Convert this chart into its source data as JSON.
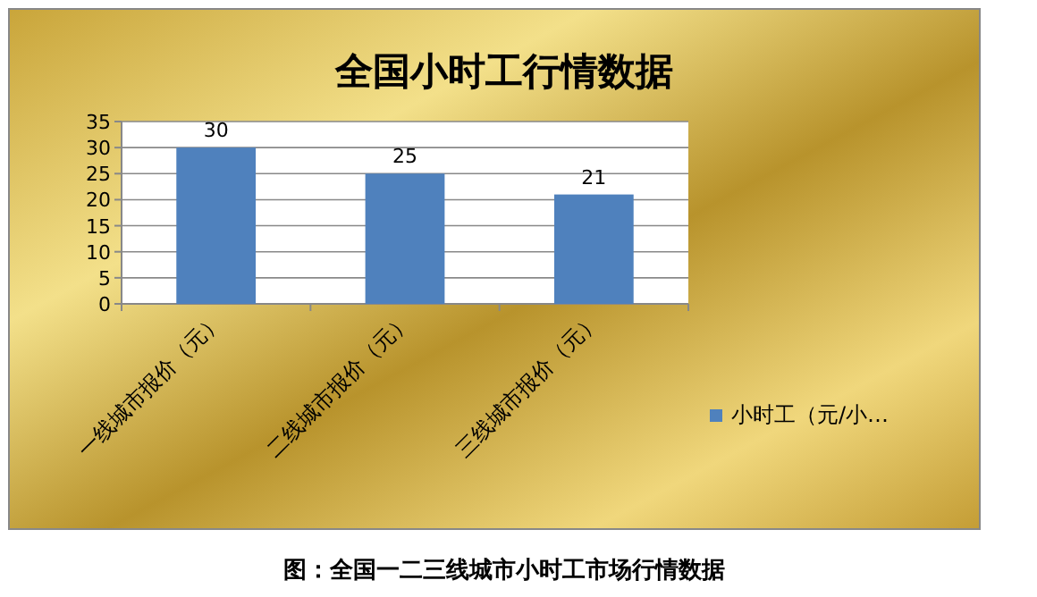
{
  "chart_data": {
    "type": "bar",
    "title": "全国小时工行情数据",
    "categories": [
      "一线城市报价（元）",
      "二线城市报价（元）",
      "三线城市报价（元）"
    ],
    "series": [
      {
        "name": "小时工（元/小…",
        "color": "#4f81bd",
        "values": [
          30,
          25,
          21
        ]
      }
    ],
    "ylim": [
      0,
      35
    ],
    "yticks": [
      0,
      5,
      10,
      15,
      20,
      25,
      30,
      35
    ],
    "grid": "y",
    "legend": "right",
    "data_labels": true,
    "annotations": [
      "图：全国一二三线城市小时工市场行情数据"
    ]
  }
}
